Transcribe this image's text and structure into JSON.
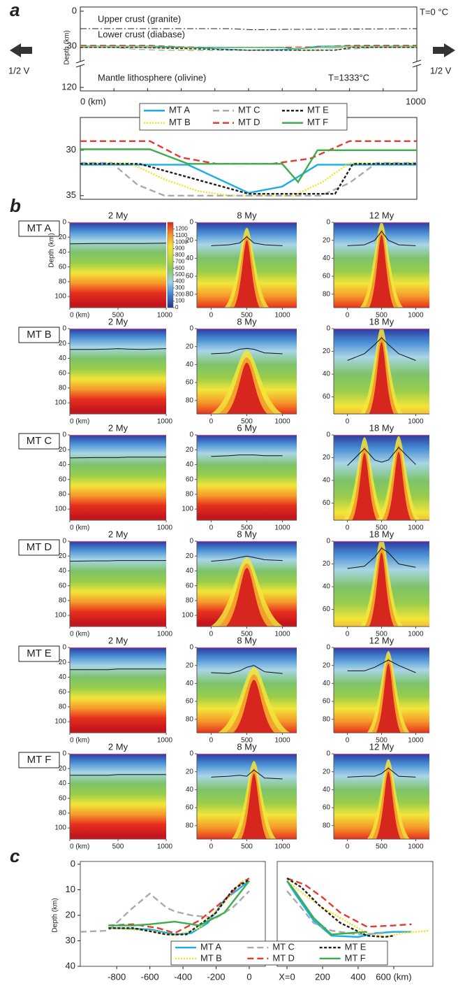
{
  "panel_labels": [
    "a",
    "b",
    "c"
  ],
  "row_labels": [
    "MT A",
    "MT B",
    "MT C",
    "MT D",
    "MT E",
    "MT F"
  ],
  "panel_a": {
    "ylabel": "Depth (km)",
    "yticks": [
      0,
      30,
      120
    ],
    "xlim": [
      0,
      1000
    ],
    "xticks": [
      {
        "value": 0,
        "label": "0 (km)"
      },
      1000
    ],
    "layers": [
      "Upper crust (granite)",
      "Lower crust (diabase)",
      "Mantle lithosphere (olivine)"
    ],
    "surface_temperature": "T=0 °C",
    "mantle_temperature": "T=1333°C",
    "velocity": [
      "1/2 V",
      "1/2 V"
    ],
    "crust_boundary_depth": 15
  },
  "chart_data": [
    {
      "type": "line",
      "xlim": [
        0,
        1000
      ],
      "ylim": [
        26.4,
        35.4
      ],
      "yticks": [
        30,
        35
      ],
      "series": [
        {
          "name": "MT A",
          "color": "#19aee6",
          "dash": "solid",
          "x": [
            0,
            320,
            500,
            600,
            705,
            1000
          ],
          "values": [
            31.6,
            31.6,
            34.7,
            34.0,
            31.6,
            31.6
          ]
        },
        {
          "name": "MT B",
          "color": "#f8e01a",
          "dash": "dotted",
          "x": [
            0,
            145,
            250,
            350,
            445,
            633,
            720,
            800,
            1000
          ],
          "values": [
            31.4,
            31.4,
            33.2,
            34.5,
            35,
            35,
            33.5,
            31.4,
            31.4
          ]
        },
        {
          "name": "MT C",
          "color": "#a5abb1",
          "dash": "dashed",
          "x": [
            0,
            93,
            170,
            250,
            715,
            800,
            880,
            1000
          ],
          "values": [
            31.4,
            31.4,
            33.8,
            35,
            35,
            33.6,
            31.4,
            31.4
          ]
        },
        {
          "name": "MT D",
          "color": "#e63a2e",
          "dash": "dashed",
          "x": [
            0,
            207,
            300,
            405,
            570,
            685,
            800,
            1000
          ],
          "values": [
            29,
            29,
            30.8,
            31.5,
            31.5,
            30.9,
            29,
            29
          ]
        },
        {
          "name": "MT E",
          "color": "#231f20",
          "dash": "short",
          "x": [
            0,
            176,
            500,
            757,
            810,
            1000
          ],
          "values": [
            31.5,
            31.5,
            34.8,
            34.8,
            31.5,
            31.5
          ]
        },
        {
          "name": "MT F",
          "color": "#3bae4a",
          "dash": "solid",
          "x": [
            0,
            207,
            320,
            600,
            647,
            705,
            1000
          ],
          "values": [
            29.9,
            29.9,
            31.5,
            31.5,
            33.5,
            30,
            30
          ]
        }
      ]
    },
    {
      "type": "heatmap",
      "title": "2 My",
      "ylabel": "Depth (km)",
      "xlim": [
        0,
        1000
      ],
      "xticks": [
        {
          "value": 0,
          "label": "0 (km)"
        },
        500,
        1000
      ],
      "ylim": [
        0,
        115
      ],
      "yticks": [
        0,
        20,
        40,
        60,
        80,
        100
      ],
      "zlim": [
        0,
        1300
      ],
      "zticks": [
        0,
        100,
        200,
        300,
        400,
        500,
        600,
        700,
        800,
        900,
        1000,
        1100,
        1200
      ],
      "x": [
        0,
        250,
        400,
        500,
        600,
        750,
        1000
      ],
      "values": [
        29,
        28.5,
        28.5,
        28.5,
        28.5,
        28.5,
        28
      ]
    },
    {
      "type": "heatmap",
      "title": "8 My",
      "xlim": [
        -200,
        1200
      ],
      "xticks": [
        0,
        500,
        1000
      ],
      "ylim": [
        0,
        95
      ],
      "yticks": [
        0,
        20,
        40,
        60,
        80
      ],
      "x": [
        0,
        250,
        400,
        500,
        600,
        750,
        1000
      ],
      "values": [
        26,
        25,
        23,
        16,
        23,
        25,
        26
      ]
    },
    {
      "type": "heatmap",
      "title": "12 My",
      "xlim": [
        -200,
        1200
      ],
      "xticks": [
        0,
        500,
        1000
      ],
      "ylim": [
        0,
        95
      ],
      "yticks": [
        0,
        20,
        40,
        60,
        80
      ],
      "x": [
        0,
        250,
        400,
        500,
        600,
        750,
        1000
      ],
      "values": [
        26,
        25,
        20,
        10,
        20,
        25,
        26
      ]
    },
    {
      "type": "heatmap",
      "title": "2 My",
      "xlim": [
        0,
        1000
      ],
      "xticks": [
        {
          "value": 0,
          "label": "0 (km)"
        },
        1000
      ],
      "ylim": [
        0,
        115
      ],
      "yticks": [
        0,
        20,
        40,
        60,
        80,
        100
      ],
      "x": [
        0,
        250,
        400,
        500,
        600,
        750,
        1000
      ],
      "values": [
        28,
        28,
        27.5,
        27,
        27.5,
        28,
        27
      ]
    },
    {
      "type": "heatmap",
      "title": "8 My",
      "xlim": [
        -200,
        1200
      ],
      "xticks": [
        0,
        500,
        1000
      ],
      "ylim": [
        0,
        95
      ],
      "yticks": [
        0,
        20,
        40,
        60,
        80
      ],
      "x": [
        0,
        250,
        400,
        500,
        600,
        750,
        1000
      ],
      "values": [
        28,
        27,
        23,
        22,
        23,
        27,
        28
      ]
    },
    {
      "type": "heatmap",
      "title": "18 My",
      "xlim": [
        -200,
        1200
      ],
      "xticks": [
        0,
        1000
      ],
      "ylim": [
        0,
        75
      ],
      "yticks": [
        0,
        20,
        40,
        60
      ],
      "x": [
        0,
        250,
        400,
        500,
        600,
        750,
        1000
      ],
      "values": [
        28,
        22,
        14,
        8,
        14,
        22,
        28
      ]
    },
    {
      "type": "heatmap",
      "title": "2 My",
      "xlim": [
        0,
        1000
      ],
      "xticks": [
        {
          "value": 0,
          "label": "0 (km)"
        },
        1000
      ],
      "ylim": [
        0,
        115
      ],
      "yticks": [
        0,
        20,
        40,
        60,
        80,
        100
      ],
      "x": [
        0,
        250,
        400,
        500,
        600,
        750,
        1000
      ],
      "values": [
        31,
        30.5,
        30.5,
        30.5,
        30,
        30,
        30
      ]
    },
    {
      "type": "heatmap",
      "title": "6 My",
      "xlim": [
        -200,
        1200
      ],
      "xticks": [
        0,
        500,
        1000
      ],
      "ylim": [
        0,
        115
      ],
      "yticks": [
        0,
        20,
        40,
        60,
        80,
        100
      ],
      "x": [
        0,
        250,
        400,
        500,
        600,
        750,
        1000
      ],
      "values": [
        29,
        28,
        27,
        27,
        27,
        28,
        28
      ]
    },
    {
      "type": "heatmap",
      "title": "18 My",
      "xlim": [
        -200,
        1200
      ],
      "xticks": [
        0,
        500,
        1000
      ],
      "ylim": [
        0,
        75
      ],
      "yticks": [
        0,
        20,
        40,
        60
      ],
      "x": [
        0,
        250,
        400,
        500,
        600,
        750,
        1000
      ],
      "values": [
        27,
        12,
        22,
        24,
        22,
        11,
        26
      ]
    },
    {
      "type": "heatmap",
      "title": "2 My",
      "xlim": [
        0,
        1000
      ],
      "xticks": [
        {
          "value": 0,
          "label": "0 (km)"
        },
        1000
      ],
      "ylim": [
        0,
        115
      ],
      "yticks": [
        0,
        20,
        40,
        60,
        80,
        100
      ],
      "x": [
        0,
        250,
        400,
        500,
        600,
        750,
        1000
      ],
      "values": [
        27,
        26.5,
        26.5,
        26,
        26,
        26,
        26
      ]
    },
    {
      "type": "heatmap",
      "title": "8 My",
      "xlim": [
        -200,
        1200
      ],
      "xticks": [
        0,
        500,
        1000
      ],
      "ylim": [
        0,
        115
      ],
      "yticks": [
        0,
        20,
        40,
        60,
        80,
        100
      ],
      "x": [
        0,
        250,
        400,
        500,
        600,
        750,
        1000
      ],
      "values": [
        27,
        25,
        22,
        20,
        22,
        25,
        26
      ]
    },
    {
      "type": "heatmap",
      "title": "18 My",
      "xlim": [
        -200,
        1200
      ],
      "xticks": [
        0,
        500,
        1000
      ],
      "ylim": [
        0,
        75
      ],
      "yticks": [
        0,
        20,
        40,
        60
      ],
      "x": [
        0,
        250,
        400,
        500,
        600,
        750,
        1000
      ],
      "values": [
        24,
        22,
        14,
        6,
        10,
        20,
        23
      ]
    },
    {
      "type": "heatmap",
      "title": "2 My",
      "xlim": [
        0,
        1000
      ],
      "xticks": [
        {
          "value": 0,
          "label": "0 (km)"
        },
        1000
      ],
      "ylim": [
        0,
        115
      ],
      "yticks": [
        0,
        20,
        40,
        60,
        80,
        100
      ],
      "x": [
        0,
        250,
        400,
        500,
        600,
        750,
        1000
      ],
      "values": [
        30,
        30,
        30,
        29,
        29,
        29,
        29
      ]
    },
    {
      "type": "heatmap",
      "title": "8 My",
      "xlim": [
        -200,
        1200
      ],
      "xticks": [
        0,
        500,
        1000
      ],
      "ylim": [
        0,
        95
      ],
      "yticks": [
        0,
        20,
        40,
        60,
        80
      ],
      "x": [
        0,
        250,
        400,
        500,
        600,
        750,
        1000
      ],
      "values": [
        28,
        29,
        26,
        22,
        20,
        27,
        29
      ]
    },
    {
      "type": "heatmap",
      "title": "12 My",
      "xlim": [
        -200,
        1200
      ],
      "xticks": [
        0,
        500,
        1000
      ],
      "ylim": [
        0,
        95
      ],
      "yticks": [
        0,
        20,
        40,
        60,
        80
      ],
      "x": [
        0,
        250,
        400,
        500,
        600,
        750,
        1000
      ],
      "values": [
        26,
        26,
        22,
        18,
        14,
        20,
        28
      ]
    },
    {
      "type": "heatmap",
      "title": "2 My",
      "xlim": [
        0,
        1000
      ],
      "xticks": [
        {
          "value": 0,
          "label": "0 (km)"
        },
        500,
        1000
      ],
      "ylim": [
        0,
        115
      ],
      "yticks": [
        0,
        20,
        40,
        60,
        80,
        100
      ],
      "x": [
        0,
        250,
        400,
        500,
        600,
        750,
        1000
      ],
      "values": [
        29,
        29,
        29,
        28,
        28,
        28,
        28
      ]
    },
    {
      "type": "heatmap",
      "title": "8 My",
      "xlim": [
        -200,
        1200
      ],
      "xticks": [
        0,
        500,
        1000
      ],
      "ylim": [
        0,
        95
      ],
      "yticks": [
        0,
        20,
        40,
        60,
        80
      ],
      "x": [
        0,
        250,
        400,
        500,
        600,
        750,
        1000
      ],
      "values": [
        26,
        25,
        24,
        25,
        18,
        27,
        28
      ]
    },
    {
      "type": "heatmap",
      "title": "12 My",
      "xlim": [
        -200,
        1200
      ],
      "xticks": [
        0,
        500,
        1000
      ],
      "ylim": [
        0,
        95
      ],
      "yticks": [
        0,
        20,
        40,
        60,
        80
      ],
      "x": [
        0,
        250,
        400,
        500,
        600,
        750,
        1000
      ],
      "values": [
        26,
        25,
        25,
        22,
        16,
        25,
        26
      ]
    },
    {
      "type": "line",
      "ylabel": "Depth (km)",
      "xlim": [
        -1020,
        97
      ],
      "xticks": [
        -800,
        -600,
        -400,
        -200,
        0
      ],
      "ylim": [
        0,
        40
      ],
      "yticks": [
        0,
        10,
        20,
        30,
        40
      ],
      "series": [
        {
          "name": "MT A",
          "color": "#19aee6",
          "dash": "solid",
          "x": [
            -850,
            -600,
            -450,
            -350,
            -250,
            -150,
            -50,
            0
          ],
          "values": [
            25,
            25.5,
            27.5,
            27,
            23,
            14,
            9,
            6.5
          ]
        },
        {
          "name": "MT B",
          "color": "#f8e01a",
          "dash": "dotted",
          "x": [
            -850,
            -600,
            -450,
            -300,
            -150,
            -50,
            0
          ],
          "values": [
            25,
            26,
            28,
            25,
            15,
            7,
            5.5
          ]
        },
        {
          "name": "MT C",
          "color": "#a5abb1",
          "dash": "dashed",
          "x": [
            -1020,
            -850,
            -720,
            -600,
            -500,
            -450,
            -350,
            -200,
            -100,
            0
          ],
          "values": [
            26.5,
            26,
            18,
            11.5,
            17,
            18.5,
            20,
            21,
            17,
            10.5
          ]
        },
        {
          "name": "MT D",
          "color": "#e63a2e",
          "dash": "dashed",
          "x": [
            -850,
            -700,
            -550,
            -450,
            -300,
            -150,
            -50,
            0
          ],
          "values": [
            24,
            23.5,
            25,
            27,
            22,
            14,
            7.5,
            5.5
          ]
        },
        {
          "name": "MT E",
          "color": "#231f20",
          "dash": "short",
          "x": [
            -850,
            -700,
            -500,
            -380,
            -200,
            -100,
            0
          ],
          "values": [
            25,
            25,
            27.5,
            27.5,
            19,
            10,
            6
          ]
        },
        {
          "name": "MT F",
          "color": "#3bae4a",
          "dash": "solid",
          "x": [
            -850,
            -700,
            -600,
            -450,
            -300,
            -150,
            0
          ],
          "values": [
            24,
            24,
            23.5,
            22.5,
            24,
            19,
            6.5
          ]
        }
      ]
    },
    {
      "type": "line",
      "xlim": [
        -55,
        820
      ],
      "xticks": [
        {
          "value": 0,
          "label": "X=0"
        },
        200,
        400,
        {
          "value": 600,
          "label": "600 (km)"
        }
      ],
      "ylim": [
        0,
        40
      ],
      "series": [
        {
          "color": "#19aee6",
          "dash": "solid",
          "x": [
            0,
            50,
            150,
            250,
            400,
            500,
            600,
            700
          ],
          "values": [
            6.5,
            12,
            22,
            28,
            28.5,
            27,
            26.5,
            26.5
          ]
        },
        {
          "color": "#f8e01a",
          "dash": "dotted",
          "x": [
            0,
            100,
            200,
            350,
            450,
            550,
            650,
            800
          ],
          "values": [
            6.5,
            12,
            17,
            23,
            27,
            28.5,
            27,
            26
          ]
        },
        {
          "color": "#a5abb1",
          "dash": "dashed",
          "x": [
            0,
            80,
            150,
            250,
            400,
            550
          ],
          "values": [
            10.5,
            17,
            23,
            26,
            27.5,
            27
          ]
        },
        {
          "color": "#e63a2e",
          "dash": "dashed",
          "x": [
            0,
            100,
            200,
            300,
            450,
            600,
            700
          ],
          "values": [
            5.5,
            8,
            13,
            19,
            24.5,
            24,
            23.5
          ]
        },
        {
          "color": "#231f20",
          "dash": "short",
          "x": [
            0,
            80,
            180,
            300,
            450,
            550,
            600
          ],
          "values": [
            5.5,
            9,
            16,
            23,
            28,
            28.5,
            28
          ]
        },
        {
          "color": "#3bae4a",
          "dash": "solid",
          "x": [
            0,
            50,
            150,
            250,
            350,
            450
          ],
          "values": [
            6.5,
            11,
            21,
            27.5,
            27,
            26.5
          ]
        }
      ]
    }
  ]
}
